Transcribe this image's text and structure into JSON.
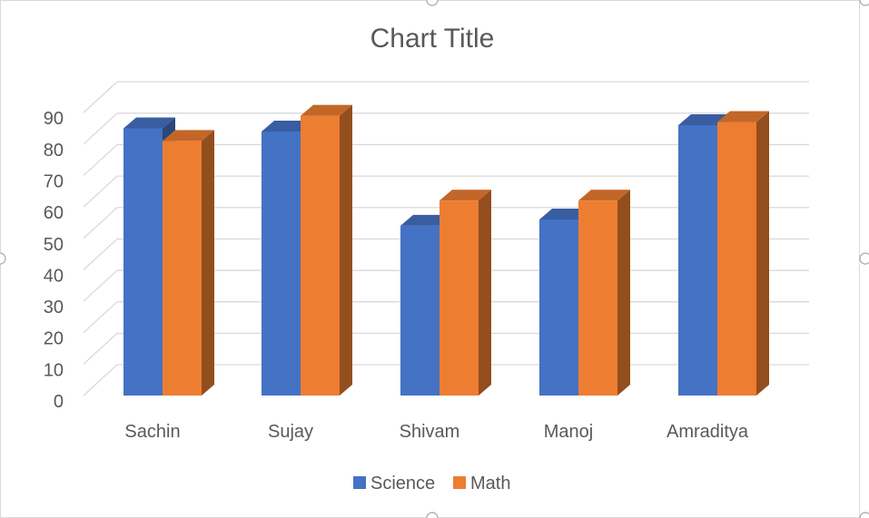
{
  "chart_data": {
    "type": "bar",
    "title": "Chart Title",
    "categories": [
      "Sachin",
      "Sujay",
      "Shivam",
      "Manoj",
      "Amraditya"
    ],
    "series": [
      {
        "name": "Science",
        "values": [
          85,
          84,
          54,
          56,
          86
        ],
        "color": "#4472c4"
      },
      {
        "name": "Math",
        "values": [
          81,
          89,
          62,
          62,
          87
        ],
        "color": "#ed7d31"
      }
    ],
    "ylim": [
      0,
      90
    ],
    "yticks": [
      0,
      10,
      20,
      30,
      40,
      50,
      60,
      70,
      80,
      90
    ],
    "grid": true,
    "legend": "bottom",
    "style": "3d-clustered-column"
  }
}
